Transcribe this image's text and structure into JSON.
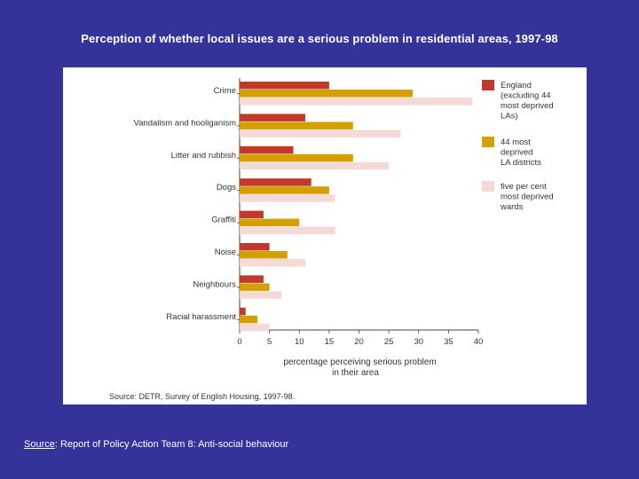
{
  "slide": {
    "title": "Perception of whether local issues are a serious problem in residential areas, 1997-98",
    "footer_label": "Source",
    "footer_text": ": Report of Policy Action Team 8: Anti-social behaviour"
  },
  "chart_data": {
    "type": "bar",
    "orientation": "horizontal",
    "categories": [
      "Crime",
      "Vandalism and hooliganism",
      "Litter and rubbish",
      "Dogs",
      "Graffiti",
      "Noise",
      "Neighbours",
      "Racial harassment"
    ],
    "series": [
      {
        "name": "England (excluding 44 most deprived LAs)",
        "color": "#c0392b",
        "values": [
          15,
          11,
          9,
          12,
          4,
          5,
          4,
          1
        ]
      },
      {
        "name": "44 most deprived LA districts",
        "color": "#d4a000",
        "values": [
          29,
          19,
          19,
          15,
          10,
          8,
          5,
          3
        ]
      },
      {
        "name": "five per cent most deprived wards",
        "color": "#f5d9d6",
        "values": [
          39,
          27,
          25,
          16,
          16,
          11,
          7,
          5
        ]
      }
    ],
    "xlim": [
      0,
      40
    ],
    "xticks": [
      0,
      5,
      10,
      15,
      20,
      25,
      30,
      35,
      40
    ],
    "xlabel_line1": "percentage perceiving serious problem",
    "xlabel_line2": "in their area",
    "legend_position": "right",
    "source": "Source: DETR, Survey of English Housing, 1997-98."
  }
}
